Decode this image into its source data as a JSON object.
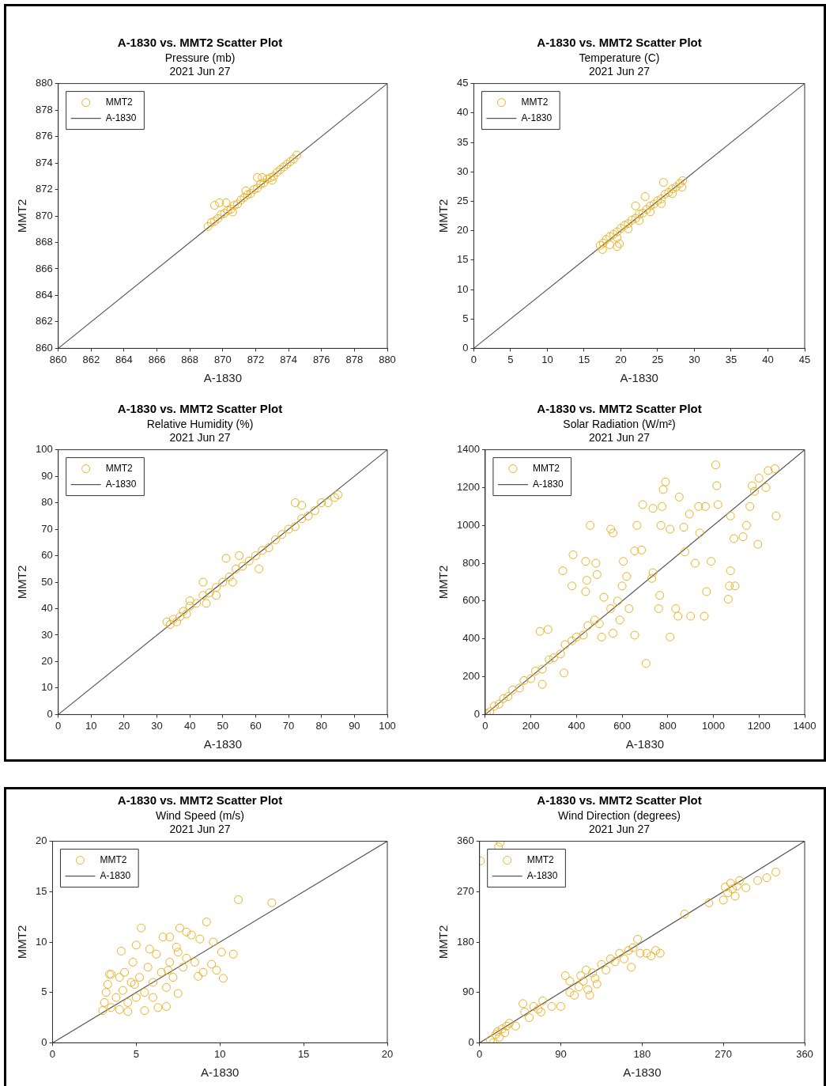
{
  "chart_data": [
    {
      "type": "scatter",
      "title": "A-1830 vs. MMT2 Scatter Plot",
      "subtitle": "Pressure (mb)",
      "annotations": [
        "2021 Jun 27"
      ],
      "xlabel": "A-1830",
      "ylabel": "MMT2",
      "xlim": [
        860,
        880
      ],
      "ylim": [
        860,
        880
      ],
      "xticks": [
        860,
        862,
        864,
        866,
        868,
        870,
        872,
        874,
        876,
        878,
        880
      ],
      "yticks": [
        860,
        862,
        864,
        866,
        868,
        870,
        872,
        874,
        876,
        878,
        880
      ],
      "legend": "top left",
      "marker": "circle",
      "series": [
        {
          "name": "MMT2",
          "color": "#edb120",
          "x": [
            869.1,
            869.3,
            869.5,
            869.7,
            869.9,
            870.1,
            870.3,
            870.5,
            870.7,
            870.9,
            871.1,
            871.3,
            871.5,
            871.7,
            871.9,
            872.1,
            872.3,
            872.5,
            872.7,
            872.9,
            873.1,
            873.3,
            873.5,
            873.7,
            873.9,
            874.1,
            874.3,
            874.5,
            869.5,
            869.8,
            870.2,
            872.1,
            872.4,
            871.4,
            870.6,
            873.0
          ],
          "values": [
            869.2,
            869.5,
            869.6,
            869.8,
            870.1,
            870.2,
            870.4,
            870.5,
            870.8,
            870.9,
            871.2,
            871.4,
            871.6,
            871.7,
            872.0,
            872.1,
            872.4,
            872.5,
            872.8,
            872.9,
            873.0,
            873.3,
            873.5,
            873.7,
            873.9,
            874.1,
            874.3,
            874.6,
            870.8,
            871.0,
            871.0,
            872.9,
            872.9,
            871.9,
            870.3,
            872.7
          ]
        },
        {
          "name": "A-1830",
          "type": "line",
          "marker": "none",
          "color": "#555555",
          "x": [
            860,
            880
          ],
          "values": [
            860,
            880
          ]
        }
      ]
    },
    {
      "type": "scatter",
      "title": "A-1830 vs. MMT2 Scatter Plot",
      "subtitle": "Temperature (C)",
      "annotations": [
        "2021 Jun 27"
      ],
      "xlabel": "A-1830",
      "ylabel": "MMT2",
      "xlim": [
        0,
        45
      ],
      "ylim": [
        0,
        45
      ],
      "xticks": [
        0,
        5,
        10,
        15,
        20,
        25,
        30,
        35,
        40,
        45
      ],
      "yticks": [
        0,
        5,
        10,
        15,
        20,
        25,
        30,
        35,
        40,
        45
      ],
      "legend": "top left",
      "marker": "circle",
      "series": [
        {
          "name": "MMT2",
          "color": "#edb120",
          "x": [
            17.2,
            17.6,
            18,
            18.5,
            19,
            19.5,
            20,
            20.5,
            21,
            21.5,
            22,
            22.5,
            23,
            23.5,
            24,
            24.5,
            25,
            25.5,
            26,
            26.5,
            27,
            27.5,
            28,
            28.4,
            17.5,
            18.5,
            19.5,
            21,
            22.5,
            24,
            25.5,
            27,
            28.3,
            22,
            23.3,
            25.8,
            19.5,
            19.8
          ],
          "values": [
            17.5,
            17.9,
            18.5,
            19,
            19.4,
            19.8,
            20.4,
            20.9,
            21.2,
            21.8,
            22.1,
            22.8,
            23,
            23.6,
            24.2,
            24.5,
            25.1,
            25.4,
            26.2,
            26.5,
            27.1,
            27.4,
            28,
            28.5,
            16.8,
            17.6,
            18.8,
            20.3,
            21.7,
            23.2,
            24.6,
            26.3,
            27.4,
            24.2,
            25.8,
            28.2,
            17.3,
            17.8
          ]
        },
        {
          "name": "A-1830",
          "type": "line",
          "marker": "none",
          "color": "#555555",
          "x": [
            0,
            45
          ],
          "values": [
            0,
            45
          ]
        }
      ]
    },
    {
      "type": "scatter",
      "title": "A-1830 vs. MMT2 Scatter Plot",
      "subtitle": "Relative Humidity (%)",
      "annotations": [
        "2021 Jun 27"
      ],
      "xlabel": "A-1830",
      "ylabel": "MMT2",
      "xlim": [
        0,
        100
      ],
      "ylim": [
        0,
        100
      ],
      "xticks": [
        0,
        10,
        20,
        30,
        40,
        50,
        60,
        70,
        80,
        90,
        100
      ],
      "yticks": [
        0,
        10,
        20,
        30,
        40,
        50,
        60,
        70,
        80,
        90,
        100
      ],
      "legend": "top left",
      "marker": "circle",
      "series": [
        {
          "name": "MMT2",
          "color": "#edb120",
          "x": [
            33,
            34,
            35,
            36,
            37,
            38,
            39,
            40,
            42,
            44,
            46,
            48,
            50,
            52,
            54,
            56,
            58,
            60,
            62,
            64,
            66,
            68,
            70,
            72,
            74,
            76,
            78,
            80,
            82,
            84,
            85,
            44,
            48,
            51,
            55,
            61,
            72,
            74,
            40,
            45,
            53
          ],
          "values": [
            35,
            34,
            36,
            35,
            37,
            39,
            38,
            41,
            42,
            45,
            46,
            48,
            50,
            52,
            55,
            56,
            58,
            60,
            62,
            63,
            66,
            68,
            70,
            71,
            74,
            75,
            77,
            80,
            80,
            82,
            83,
            50,
            45,
            59,
            60,
            55,
            80,
            79,
            43,
            42,
            50
          ]
        },
        {
          "name": "A-1830",
          "type": "line",
          "marker": "none",
          "color": "#555555",
          "x": [
            0,
            100
          ],
          "values": [
            0,
            100
          ]
        }
      ]
    },
    {
      "type": "scatter",
      "title": "A-1830 vs. MMT2 Scatter Plot",
      "subtitle": "Solar Radiation (W/m²)",
      "annotations": [
        "2021 Jun 27"
      ],
      "xlabel": "A-1830",
      "ylabel": "MMT2",
      "xlim": [
        0,
        1400
      ],
      "ylim": [
        0,
        1400
      ],
      "xticks": [
        0,
        200,
        400,
        600,
        800,
        1000,
        1200,
        1400
      ],
      "yticks": [
        0,
        200,
        400,
        600,
        800,
        1000,
        1200,
        1400
      ],
      "legend": "top left",
      "marker": "circle",
      "series": [
        {
          "name": "MMT2",
          "color": "#edb120",
          "x": [
            5,
            20,
            40,
            60,
            80,
            100,
            120,
            150,
            170,
            200,
            220,
            250,
            280,
            300,
            330,
            350,
            380,
            400,
            430,
            450,
            480,
            500,
            550,
            580,
            460,
            550,
            560,
            385,
            340,
            440,
            485,
            490,
            380,
            445,
            440,
            600,
            620,
            655,
            685,
            690,
            735,
            665,
            605,
            790,
            780,
            850,
            870,
            810,
            775,
            770,
            895,
            935,
            965,
            1010,
            1015,
            1020,
            1075,
            1145,
            1170,
            1200,
            1240,
            1270,
            1275,
            1195,
            1090,
            1070,
            1075,
            1065,
            1095,
            960,
            970,
            900,
            845,
            835,
            810,
            705,
            655,
            560,
            510,
            250,
            345,
            275,
            240,
            760,
            765,
            730,
            735,
            920,
            990,
            875,
            940,
            1180,
            1230,
            1160,
            1130,
            630,
            520,
            590
          ],
          "values": [
            5,
            15,
            45,
            55,
            85,
            95,
            130,
            140,
            180,
            190,
            230,
            240,
            290,
            300,
            320,
            370,
            390,
            410,
            420,
            470,
            500,
            480,
            560,
            600,
            1000,
            980,
            960,
            845,
            760,
            810,
            800,
            740,
            680,
            710,
            650,
            680,
            730,
            865,
            870,
            1110,
            1090,
            1000,
            810,
            1230,
            1190,
            1150,
            990,
            980,
            1100,
            1000,
            1060,
            1100,
            1100,
            1320,
            1210,
            1110,
            1050,
            1000,
            1210,
            1250,
            1290,
            1300,
            1050,
            900,
            930,
            680,
            760,
            610,
            680,
            520,
            650,
            520,
            520,
            560,
            410,
            270,
            420,
            430,
            410,
            160,
            220,
            450,
            440,
            560,
            630,
            720,
            750,
            800,
            810,
            860,
            960,
            1180,
            1200,
            1100,
            940,
            560,
            620,
            500
          ]
        },
        {
          "name": "A-1830",
          "type": "line",
          "marker": "none",
          "color": "#555555",
          "x": [
            0,
            1400
          ],
          "values": [
            0,
            1400
          ]
        }
      ]
    },
    {
      "type": "scatter",
      "title": "A-1830 vs. MMT2 Scatter Plot",
      "subtitle": "Wind Speed (m/s)",
      "annotations": [
        "2021 Jun 27"
      ],
      "xlabel": "A-1830",
      "ylabel": "MMT2",
      "xlim": [
        0,
        20
      ],
      "ylim": [
        0,
        20
      ],
      "xticks": [
        0,
        5,
        10,
        15,
        20
      ],
      "yticks": [
        0,
        5,
        10,
        15,
        20
      ],
      "legend": "top left",
      "marker": "circle",
      "series": [
        {
          "name": "MMT2",
          "color": "#edb120",
          "x": [
            3,
            3.1,
            3.2,
            3.3,
            3.5,
            3.5,
            3.8,
            4,
            4,
            4.2,
            4.3,
            4.5,
            4.5,
            4.7,
            4.8,
            5,
            5,
            5.2,
            5.3,
            5.5,
            5.5,
            5.7,
            5.8,
            6,
            6,
            6.2,
            6.3,
            6.5,
            6.6,
            6.8,
            6.8,
            7,
            7,
            7.2,
            7.5,
            7.5,
            7.6,
            7.8,
            8,
            8,
            8.3,
            8.5,
            8.7,
            8.8,
            9,
            9.2,
            9.5,
            9.6,
            9.8,
            10.1,
            10.2,
            10.8,
            11.1,
            13.1,
            4.1,
            3.4,
            7.4,
            6.9,
            4.9
          ],
          "values": [
            3.2,
            4,
            5,
            5.8,
            3.5,
            6.8,
            4.5,
            3.3,
            6.5,
            5.2,
            7,
            4,
            3.1,
            6,
            8,
            4.5,
            9.7,
            6.5,
            11.4,
            5,
            3.2,
            7.5,
            9.3,
            6,
            4.5,
            8.8,
            3.5,
            7,
            10.5,
            5.5,
            3.6,
            8,
            10.5,
            6.5,
            9,
            4.9,
            11.4,
            7.5,
            8.4,
            11,
            10.7,
            8,
            6.6,
            10.3,
            7,
            12,
            7.8,
            10,
            7.2,
            9,
            6.4,
            8.8,
            14.2,
            13.9,
            9.1,
            6.8,
            9.5,
            7.2,
            5.8
          ]
        },
        {
          "name": "A-1830",
          "type": "line",
          "marker": "none",
          "color": "#555555",
          "x": [
            0,
            20
          ],
          "values": [
            0,
            20
          ]
        }
      ]
    },
    {
      "type": "scatter",
      "title": "A-1830 vs. MMT2 Scatter Plot",
      "subtitle": "Wind Direction (degrees)",
      "annotations": [
        "2021 Jun 27"
      ],
      "xlabel": "A-1830",
      "ylabel": "MMT2",
      "xlim": [
        0,
        360
      ],
      "ylim": [
        0,
        360
      ],
      "xticks": [
        0,
        90,
        180,
        270,
        360
      ],
      "yticks": [
        0,
        90,
        180,
        270,
        360
      ],
      "legend": "top left",
      "marker": "circle",
      "series": [
        {
          "name": "MMT2",
          "color": "#edb120",
          "x": [
            1,
            21,
            23,
            12,
            15,
            18,
            20,
            22,
            25,
            28,
            30,
            33,
            40,
            48,
            50,
            55,
            60,
            65,
            68,
            70,
            80,
            90,
            95,
            100,
            100,
            105,
            110,
            112,
            115,
            118,
            120,
            122,
            125,
            128,
            130,
            135,
            140,
            145,
            150,
            155,
            160,
            165,
            168,
            170,
            175,
            178,
            185,
            190,
            195,
            200,
            227,
            254,
            270,
            272,
            275,
            278,
            280,
            283,
            285,
            288,
            295,
            308,
            318,
            328
          ],
          "values": [
            325,
            350,
            358,
            5,
            0,
            15,
            20,
            10,
            25,
            18,
            30,
            35,
            30,
            70,
            55,
            45,
            65,
            60,
            55,
            75,
            65,
            65,
            120,
            110,
            90,
            85,
            100,
            120,
            110,
            130,
            95,
            85,
            125,
            115,
            105,
            140,
            130,
            150,
            145,
            160,
            150,
            165,
            135,
            170,
            185,
            160,
            160,
            155,
            165,
            160,
            230,
            250,
            255,
            278,
            268,
            285,
            275,
            262,
            280,
            290,
            277,
            290,
            295,
            305
          ]
        },
        {
          "name": "A-1830",
          "type": "line",
          "marker": "none",
          "color": "#555555",
          "x": [
            0,
            360
          ],
          "values": [
            0,
            360
          ]
        }
      ]
    }
  ]
}
